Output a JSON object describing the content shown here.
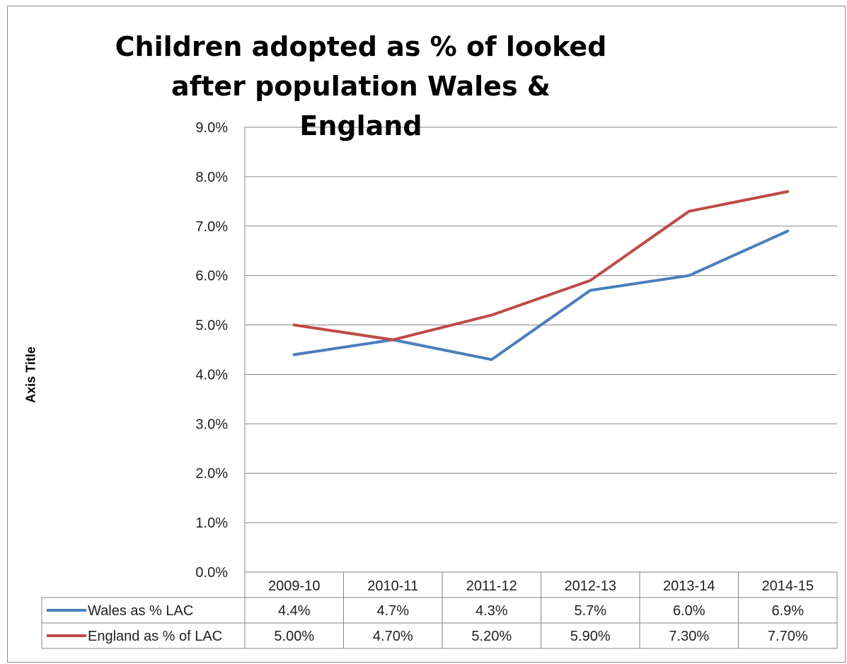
{
  "chart_data": {
    "type": "line",
    "title": "Children adopted as % of looked after population Wales & England",
    "ylabel": "Axis Title",
    "xlabel": "",
    "categories": [
      "2009-10",
      "2010-11",
      "2011-12",
      "2012-13",
      "2013-14",
      "2014-15"
    ],
    "ylim": [
      0,
      9
    ],
    "yticks": [
      "0.0%",
      "1.0%",
      "2.0%",
      "3.0%",
      "4.0%",
      "5.0%",
      "6.0%",
      "7.0%",
      "8.0%",
      "9.0%"
    ],
    "grid": true,
    "legend": "data-table",
    "series": [
      {
        "name": "Wales as % LAC",
        "color": "#4a7ebb",
        "values": [
          4.4,
          4.7,
          4.3,
          5.7,
          6.0,
          6.9
        ],
        "labels": [
          "4.4%",
          "4.7%",
          "4.3%",
          "5.7%",
          "6.0%",
          "6.9%"
        ]
      },
      {
        "name": "England as % of LAC",
        "color": "#be4b48",
        "values": [
          5.0,
          4.7,
          5.2,
          5.9,
          7.3,
          7.7
        ],
        "labels": [
          "5.00%",
          "4.70%",
          "5.20%",
          "5.90%",
          "7.30%",
          "7.70%"
        ]
      }
    ]
  }
}
